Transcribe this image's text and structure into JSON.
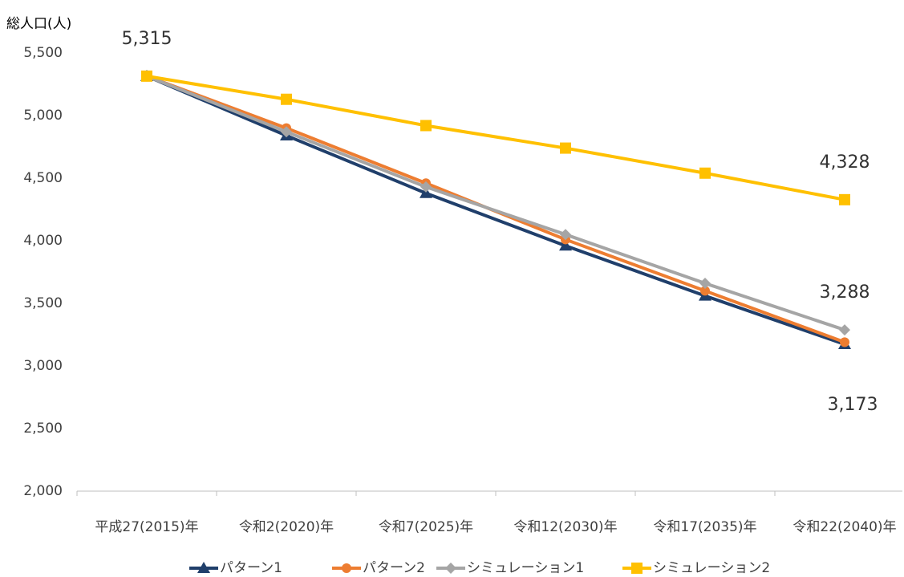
{
  "chart_data": {
    "type": "line",
    "y_axis_label": "総人口(人)",
    "categories": [
      "平成27(2015)年",
      "令和2(2020)年",
      "令和7(2025)年",
      "令和12(2030)年",
      "令和17(2035)年",
      "令和22(2040)年"
    ],
    "series": [
      {
        "name": "パターン1",
        "color": "#203f6b",
        "marker": "triangle",
        "values": [
          5315,
          4840,
          4380,
          3960,
          3560,
          3173
        ],
        "value_labels": [
          null,
          null,
          null,
          null,
          null,
          "3,173"
        ]
      },
      {
        "name": "パターン2",
        "color": "#ed7d31",
        "marker": "circle",
        "values": [
          5315,
          4900,
          4460,
          4010,
          3600,
          3190
        ]
      },
      {
        "name": "シミュレーション1",
        "color": "#a5a5a5",
        "marker": "diamond",
        "values": [
          5315,
          4870,
          4430,
          4050,
          3660,
          3288
        ],
        "value_labels": [
          null,
          null,
          null,
          null,
          null,
          "3,288"
        ]
      },
      {
        "name": "シミュレーション2",
        "color": "#ffc000",
        "marker": "square",
        "values": [
          5315,
          5130,
          4920,
          4740,
          4540,
          4328
        ],
        "value_labels": [
          "5,315",
          null,
          null,
          null,
          null,
          "4,328"
        ]
      }
    ],
    "ylim": [
      2000,
      5500
    ],
    "yticks": [
      {
        "value": 2000,
        "label": "2,000"
      },
      {
        "value": 2500,
        "label": "2,500"
      },
      {
        "value": 3000,
        "label": "3,000"
      },
      {
        "value": 3500,
        "label": "3,500"
      },
      {
        "value": 4000,
        "label": "4,000"
      },
      {
        "value": 4500,
        "label": "4,500"
      },
      {
        "value": 5000,
        "label": "5,000"
      },
      {
        "value": 5500,
        "label": "5,500"
      }
    ],
    "grid": false,
    "legend": "bottom"
  }
}
